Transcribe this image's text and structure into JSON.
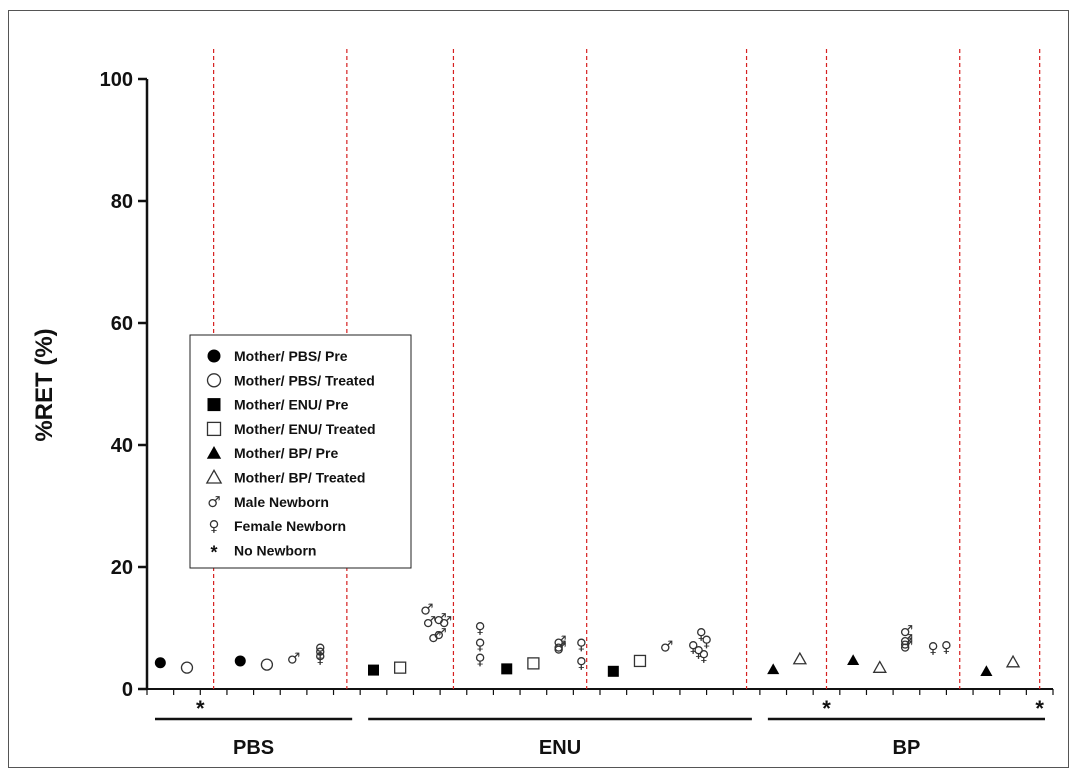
{
  "chart_data": {
    "type": "scatter",
    "title": "",
    "xlabel": "",
    "ylabel": "%RET (%)",
    "ylim": [
      0,
      100
    ],
    "yticks": [
      0,
      20,
      40,
      60,
      80,
      100
    ],
    "grid": false,
    "legend_position": "left-middle",
    "x_slots": 34,
    "group_labels": [
      {
        "label": "PBS",
        "slot_start": 0,
        "slot_end": 7
      },
      {
        "label": "ENU",
        "slot_start": 8,
        "slot_end": 22
      },
      {
        "label": "BP",
        "slot_start": 23,
        "slot_end": 33
      }
    ],
    "dividers_after_slot": [
      2.5,
      7.5,
      11.5,
      16.5,
      22.5,
      25.5,
      30.5,
      33.5
    ],
    "legend": [
      {
        "symbol": "circle-filled",
        "label": "Mother/ PBS/ Pre"
      },
      {
        "symbol": "circle-open",
        "label": "Mother/ PBS/ Treated"
      },
      {
        "symbol": "square-filled",
        "label": "Mother/ ENU/ Pre"
      },
      {
        "symbol": "square-open",
        "label": "Mother/ ENU/ Treated"
      },
      {
        "symbol": "triangle-filled",
        "label": "Mother/ BP/ Pre"
      },
      {
        "symbol": "triangle-open",
        "label": "Mother/ BP/ Treated"
      },
      {
        "symbol": "male",
        "label": "Male Newborn"
      },
      {
        "symbol": "female",
        "label": "Female Newborn"
      },
      {
        "symbol": "star",
        "label": "No Newborn"
      }
    ],
    "points": [
      {
        "slot": 0.5,
        "y": 4.3,
        "symbol": "circle-filled"
      },
      {
        "slot": 1.5,
        "y": 3.5,
        "symbol": "circle-open"
      },
      {
        "slot": 3.5,
        "y": 4.6,
        "symbol": "circle-filled"
      },
      {
        "slot": 4.5,
        "y": 4.0,
        "symbol": "circle-open"
      },
      {
        "slot": 5.5,
        "y": 5.0,
        "symbol": "male"
      },
      {
        "slot": 6.5,
        "y": 6.5,
        "symbol": "female"
      },
      {
        "slot": 6.5,
        "y": 5.8,
        "symbol": "female"
      },
      {
        "slot": 6.5,
        "y": 5.1,
        "symbol": "female"
      },
      {
        "slot": 8.5,
        "y": 3.1,
        "symbol": "square-filled"
      },
      {
        "slot": 9.5,
        "y": 3.5,
        "symbol": "square-open"
      },
      {
        "slot": 10.5,
        "y": 13.0,
        "symbol": "male"
      },
      {
        "slot": 10.6,
        "y": 11.0,
        "symbol": "male"
      },
      {
        "slot": 11.0,
        "y": 11.5,
        "symbol": "male"
      },
      {
        "slot": 11.2,
        "y": 11.0,
        "symbol": "male"
      },
      {
        "slot": 10.8,
        "y": 8.5,
        "symbol": "male"
      },
      {
        "slot": 11.0,
        "y": 9.0,
        "symbol": "male"
      },
      {
        "slot": 12.5,
        "y": 10.0,
        "symbol": "female"
      },
      {
        "slot": 12.5,
        "y": 7.3,
        "symbol": "female"
      },
      {
        "slot": 12.5,
        "y": 4.8,
        "symbol": "female"
      },
      {
        "slot": 13.5,
        "y": 3.3,
        "symbol": "square-filled"
      },
      {
        "slot": 14.5,
        "y": 4.2,
        "symbol": "square-open"
      },
      {
        "slot": 15.5,
        "y": 7.8,
        "symbol": "male"
      },
      {
        "slot": 15.5,
        "y": 7.0,
        "symbol": "male"
      },
      {
        "slot": 15.5,
        "y": 6.6,
        "symbol": "male"
      },
      {
        "slot": 16.3,
        "y": 7.3,
        "symbol": "female"
      },
      {
        "slot": 16.3,
        "y": 4.3,
        "symbol": "female"
      },
      {
        "slot": 17.5,
        "y": 2.9,
        "symbol": "square-filled"
      },
      {
        "slot": 18.5,
        "y": 4.6,
        "symbol": "square-open"
      },
      {
        "slot": 19.5,
        "y": 7.0,
        "symbol": "male"
      },
      {
        "slot": 20.5,
        "y": 6.9,
        "symbol": "female"
      },
      {
        "slot": 20.8,
        "y": 9.0,
        "symbol": "female"
      },
      {
        "slot": 21.0,
        "y": 7.8,
        "symbol": "female"
      },
      {
        "slot": 20.7,
        "y": 6.1,
        "symbol": "female"
      },
      {
        "slot": 20.9,
        "y": 5.4,
        "symbol": "female"
      },
      {
        "slot": 23.5,
        "y": 3.2,
        "symbol": "triangle-filled"
      },
      {
        "slot": 24.5,
        "y": 4.9,
        "symbol": "triangle-open"
      },
      {
        "slot": 26.5,
        "y": 4.7,
        "symbol": "triangle-filled"
      },
      {
        "slot": 27.5,
        "y": 3.5,
        "symbol": "triangle-open"
      },
      {
        "slot": 28.5,
        "y": 9.5,
        "symbol": "male"
      },
      {
        "slot": 28.5,
        "y": 8.0,
        "symbol": "male"
      },
      {
        "slot": 28.5,
        "y": 7.5,
        "symbol": "male"
      },
      {
        "slot": 28.5,
        "y": 7.0,
        "symbol": "male"
      },
      {
        "slot": 29.5,
        "y": 6.7,
        "symbol": "female"
      },
      {
        "slot": 30.0,
        "y": 6.9,
        "symbol": "female"
      },
      {
        "slot": 31.5,
        "y": 2.9,
        "symbol": "triangle-filled"
      },
      {
        "slot": 32.5,
        "y": 4.4,
        "symbol": "triangle-open"
      }
    ],
    "no_newborn_marks": [
      {
        "slot": 2.0,
        "label": "*"
      },
      {
        "slot": 25.5,
        "label": "*"
      },
      {
        "slot": 33.5,
        "label": "*"
      }
    ]
  }
}
